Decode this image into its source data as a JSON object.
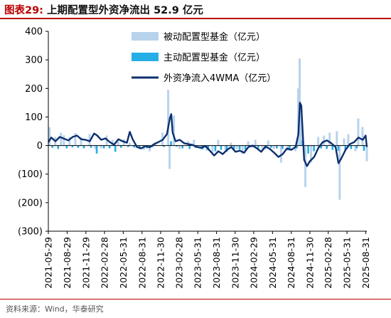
{
  "figure": {
    "label": "图表29:",
    "title": "上期配置型外资净流出 52.9 亿元",
    "source": "资料来源：Wind，华泰研究"
  },
  "chart_data": {
    "type": "bar",
    "ylim": [
      -300,
      400
    ],
    "yticks": [
      400,
      300,
      200,
      100,
      0,
      -100,
      -200,
      -300
    ],
    "ytick_labels": [
      "400",
      "300",
      "200",
      "100",
      "0",
      "(100)",
      "(200)",
      "(300)"
    ],
    "x_date_start": "2021-05-29",
    "x_date_end": "2025-09-05",
    "xtick_labels": [
      "2021-05-29",
      "2021-08-29",
      "2021-11-29",
      "2022-02-28",
      "2022-05-31",
      "2022-08-31",
      "2022-11-30",
      "2023-02-28",
      "2023-05-31",
      "2023-08-31",
      "2023-11-30",
      "2024-02-29",
      "2024-05-31",
      "2024-08-31",
      "2024-11-30",
      "2025-02-28",
      "2025-05-31",
      "2025-08-31"
    ],
    "legend_position": "top-right",
    "grid": false,
    "series": [
      {
        "name": "被动配置型基金（亿元）",
        "kind": "bar",
        "color": "#b8d3ec",
        "points": [
          [
            "2021-06-04",
            64
          ],
          [
            "2021-07-02",
            30
          ],
          [
            "2021-07-30",
            45
          ],
          [
            "2021-08-13",
            36
          ],
          [
            "2021-09-10",
            30
          ],
          [
            "2021-10-08",
            44
          ],
          [
            "2021-11-05",
            30
          ],
          [
            "2021-12-17",
            40
          ],
          [
            "2022-01-14",
            -12
          ],
          [
            "2022-02-11",
            -10
          ],
          [
            "2022-03-11",
            35
          ],
          [
            "2022-04-08",
            20
          ],
          [
            "2022-05-06",
            15
          ],
          [
            "2022-06-03",
            22
          ],
          [
            "2022-07-01",
            10
          ],
          [
            "2022-07-29",
            -8
          ],
          [
            "2022-09-09",
            -15
          ],
          [
            "2022-10-07",
            -20
          ],
          [
            "2022-11-04",
            10
          ],
          [
            "2022-12-09",
            45
          ],
          [
            "2023-01-06",
            195
          ],
          [
            "2023-01-13",
            -82
          ],
          [
            "2023-02-03",
            105
          ],
          [
            "2023-03-03",
            -12
          ],
          [
            "2023-04-14",
            15
          ],
          [
            "2023-05-12",
            20
          ],
          [
            "2023-06-16",
            -10
          ],
          [
            "2023-07-14",
            -18
          ],
          [
            "2023-08-11",
            -25
          ],
          [
            "2023-09-08",
            20
          ],
          [
            "2023-10-13",
            -15
          ],
          [
            "2023-11-10",
            10
          ],
          [
            "2023-12-08",
            -12
          ],
          [
            "2024-01-05",
            -30
          ],
          [
            "2024-02-02",
            15
          ],
          [
            "2024-03-08",
            20
          ],
          [
            "2024-04-12",
            -15
          ],
          [
            "2024-05-10",
            18
          ],
          [
            "2024-06-07",
            -12
          ],
          [
            "2024-07-12",
            -60
          ],
          [
            "2024-08-16",
            -18
          ],
          [
            "2024-09-20",
            -20
          ],
          [
            "2024-10-04",
            200
          ],
          [
            "2024-10-11",
            305
          ],
          [
            "2024-10-18",
            100
          ],
          [
            "2024-11-08",
            -145
          ],
          [
            "2024-12-06",
            -60
          ],
          [
            "2025-01-10",
            30
          ],
          [
            "2025-02-07",
            35
          ],
          [
            "2025-03-07",
            45
          ],
          [
            "2025-04-11",
            50
          ],
          [
            "2025-04-25",
            -190
          ],
          [
            "2025-05-16",
            25
          ],
          [
            "2025-06-06",
            40
          ],
          [
            "2025-07-11",
            -20
          ],
          [
            "2025-07-25",
            95
          ],
          [
            "2025-08-15",
            65
          ],
          [
            "2025-09-05",
            -55
          ]
        ]
      },
      {
        "name": "主动配置型基金（亿元）",
        "kind": "bar",
        "color": "#25aee6",
        "points": [
          [
            "2021-06-18",
            -8
          ],
          [
            "2021-07-16",
            -12
          ],
          [
            "2021-08-27",
            -10
          ],
          [
            "2021-09-24",
            -6
          ],
          [
            "2021-10-22",
            -8
          ],
          [
            "2021-11-19",
            -10
          ],
          [
            "2021-12-24",
            -8
          ],
          [
            "2022-01-21",
            -28
          ],
          [
            "2022-02-25",
            -10
          ],
          [
            "2022-03-25",
            -10
          ],
          [
            "2022-04-22",
            -22
          ],
          [
            "2022-05-20",
            -8
          ],
          [
            "2022-06-24",
            -5
          ],
          [
            "2022-07-22",
            -6
          ],
          [
            "2022-08-19",
            -12
          ],
          [
            "2022-09-23",
            -10
          ],
          [
            "2022-10-21",
            -6
          ],
          [
            "2022-12-16",
            -5
          ],
          [
            "2023-01-20",
            15
          ],
          [
            "2023-02-17",
            -4
          ],
          [
            "2023-03-17",
            -10
          ],
          [
            "2023-04-21",
            -12
          ],
          [
            "2023-05-19",
            -8
          ],
          [
            "2023-06-23",
            -14
          ],
          [
            "2023-07-21",
            -12
          ],
          [
            "2023-08-25",
            -20
          ],
          [
            "2023-09-22",
            -15
          ],
          [
            "2023-10-20",
            -22
          ],
          [
            "2023-11-24",
            -18
          ],
          [
            "2023-12-22",
            -14
          ],
          [
            "2024-01-19",
            -15
          ],
          [
            "2024-02-23",
            -6
          ],
          [
            "2024-03-22",
            -10
          ],
          [
            "2024-04-26",
            -12
          ],
          [
            "2024-05-24",
            -8
          ],
          [
            "2024-06-21",
            -10
          ],
          [
            "2024-07-19",
            -12
          ],
          [
            "2024-08-23",
            -15
          ],
          [
            "2024-09-27",
            -10
          ],
          [
            "2024-10-25",
            18
          ],
          [
            "2024-11-22",
            -28
          ],
          [
            "2024-12-20",
            -20
          ],
          [
            "2025-01-24",
            -10
          ],
          [
            "2025-02-21",
            -12
          ],
          [
            "2025-03-21",
            -15
          ],
          [
            "2025-04-18",
            -18
          ],
          [
            "2025-05-23",
            -15
          ],
          [
            "2025-06-20",
            -12
          ],
          [
            "2025-07-18",
            -10
          ],
          [
            "2025-08-22",
            -18
          ]
        ]
      },
      {
        "name": "外资净流入4WMA（亿元）",
        "kind": "line",
        "color": "#0c2f6e",
        "points": [
          [
            "2021-05-29",
            12
          ],
          [
            "2021-06-12",
            28
          ],
          [
            "2021-07-03",
            15
          ],
          [
            "2021-07-24",
            30
          ],
          [
            "2021-08-14",
            24
          ],
          [
            "2021-09-04",
            18
          ],
          [
            "2021-09-25",
            30
          ],
          [
            "2021-10-16",
            35
          ],
          [
            "2021-11-06",
            22
          ],
          [
            "2021-11-27",
            20
          ],
          [
            "2021-12-18",
            15
          ],
          [
            "2022-01-08",
            42
          ],
          [
            "2022-01-22",
            36
          ],
          [
            "2022-02-12",
            20
          ],
          [
            "2022-03-05",
            25
          ],
          [
            "2022-03-26",
            12
          ],
          [
            "2022-04-16",
            3
          ],
          [
            "2022-05-07",
            22
          ],
          [
            "2022-05-28",
            15
          ],
          [
            "2022-06-18",
            10
          ],
          [
            "2022-07-02",
            48
          ],
          [
            "2022-07-16",
            22
          ],
          [
            "2022-08-06",
            -5
          ],
          [
            "2022-08-27",
            -10
          ],
          [
            "2022-09-17",
            -2
          ],
          [
            "2022-10-08",
            -6
          ],
          [
            "2022-10-29",
            5
          ],
          [
            "2022-11-19",
            12
          ],
          [
            "2022-12-10",
            20
          ],
          [
            "2022-12-31",
            40
          ],
          [
            "2023-01-14",
            95
          ],
          [
            "2023-01-21",
            110
          ],
          [
            "2023-01-28",
            45
          ],
          [
            "2023-02-11",
            15
          ],
          [
            "2023-03-04",
            20
          ],
          [
            "2023-03-25",
            8
          ],
          [
            "2023-04-15",
            5
          ],
          [
            "2023-05-06",
            2
          ],
          [
            "2023-05-27",
            -5
          ],
          [
            "2023-06-17",
            -8
          ],
          [
            "2023-07-08",
            -2
          ],
          [
            "2023-07-29",
            -18
          ],
          [
            "2023-08-19",
            -35
          ],
          [
            "2023-09-09",
            -20
          ],
          [
            "2023-09-30",
            -30
          ],
          [
            "2023-10-21",
            -15
          ],
          [
            "2023-11-11",
            -5
          ],
          [
            "2023-12-02",
            -22
          ],
          [
            "2023-12-23",
            -18
          ],
          [
            "2024-01-13",
            -25
          ],
          [
            "2024-02-03",
            -5
          ],
          [
            "2024-02-24",
            0
          ],
          [
            "2024-03-16",
            -10
          ],
          [
            "2024-04-06",
            -22
          ],
          [
            "2024-04-27",
            -3
          ],
          [
            "2024-05-18",
            -12
          ],
          [
            "2024-06-08",
            -25
          ],
          [
            "2024-06-29",
            -40
          ],
          [
            "2024-07-20",
            -30
          ],
          [
            "2024-08-10",
            -10
          ],
          [
            "2024-08-31",
            -15
          ],
          [
            "2024-09-21",
            -5
          ],
          [
            "2024-10-05",
            40
          ],
          [
            "2024-10-12",
            150
          ],
          [
            "2024-10-19",
            140
          ],
          [
            "2024-11-02",
            -50
          ],
          [
            "2024-11-16",
            -72
          ],
          [
            "2024-11-30",
            -55
          ],
          [
            "2024-12-21",
            -40
          ],
          [
            "2025-01-11",
            -8
          ],
          [
            "2025-02-01",
            12
          ],
          [
            "2025-02-22",
            18
          ],
          [
            "2025-03-15",
            8
          ],
          [
            "2025-04-05",
            -5
          ],
          [
            "2025-04-19",
            -62
          ],
          [
            "2025-05-03",
            -45
          ],
          [
            "2025-05-24",
            -15
          ],
          [
            "2025-06-14",
            5
          ],
          [
            "2025-07-05",
            12
          ],
          [
            "2025-07-26",
            28
          ],
          [
            "2025-08-16",
            20
          ],
          [
            "2025-08-30",
            35
          ],
          [
            "2025-09-05",
            -5
          ]
        ]
      }
    ]
  }
}
